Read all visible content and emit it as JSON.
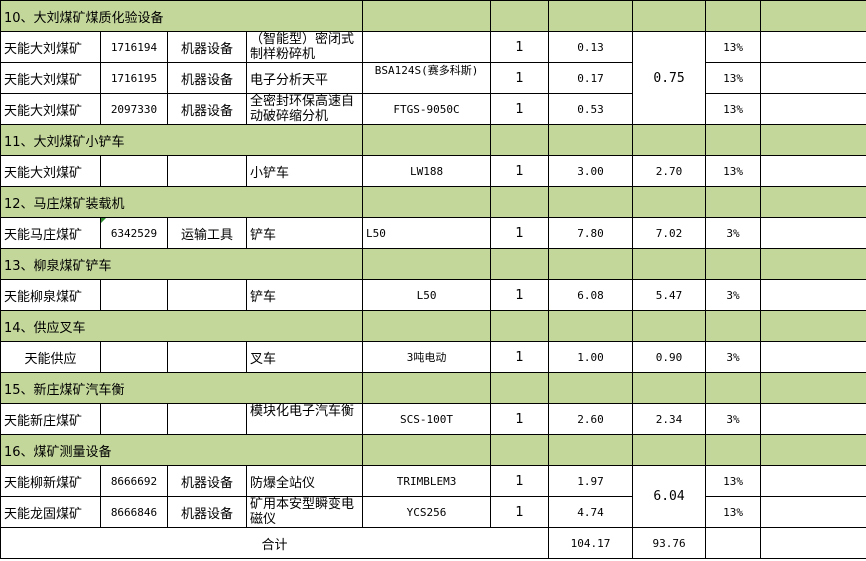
{
  "sections": [
    {
      "title": "10、大刘煤矿煤质化验设备",
      "rows": [
        {
          "company": "天能大刘煤矿",
          "code": "1716194",
          "category": "机器设备",
          "name": "（智能型）密闭式制样粉碎机",
          "model": "",
          "qty": "1",
          "value": "0.13",
          "tax": "13%"
        },
        {
          "company": "天能大刘煤矿",
          "code": "1716195",
          "category": "机器设备",
          "name": "电子分析天平",
          "model": "BSA124S(赛多科斯)",
          "qty": "1",
          "value": "0.17",
          "tax": "13%"
        },
        {
          "company": "天能大刘煤矿",
          "code": "2097330",
          "category": "机器设备",
          "name": "全密封环保高速自动破碎缩分机",
          "model": "FTGS-9050C",
          "qty": "1",
          "value": "0.53",
          "tax": "13%"
        }
      ],
      "merged_net": "0.75"
    },
    {
      "title": "11、大刘煤矿小铲车",
      "rows": [
        {
          "company": "天能大刘煤矿",
          "code": "",
          "category": "",
          "name": "小铲车",
          "model": "LW188",
          "qty": "1",
          "value": "3.00",
          "net": "2.70",
          "tax": "13%"
        }
      ]
    },
    {
      "title": "12、马庄煤矿装载机",
      "rows": [
        {
          "company": "天能马庄煤矿",
          "code": "6342529",
          "category": "运输工具",
          "name": "铲车",
          "model": "L50",
          "model_align": "left",
          "qty": "1",
          "value": "7.80",
          "net": "7.02",
          "tax": "3%",
          "comment": true
        }
      ]
    },
    {
      "title": "13、柳泉煤矿铲车",
      "rows": [
        {
          "company": "天能柳泉煤矿",
          "code": "",
          "category": "",
          "name": "铲车",
          "model": "L50",
          "qty": "1",
          "value": "6.08",
          "net": "5.47",
          "tax": "3%"
        }
      ]
    },
    {
      "title": "14、供应叉车",
      "rows": [
        {
          "company": "天能供应",
          "code": "",
          "category": "",
          "name": "叉车",
          "model": "3吨电动",
          "qty": "1",
          "value": "1.00",
          "net": "0.90",
          "tax": "3%",
          "center_company": true
        }
      ]
    },
    {
      "title": "15、新庄煤矿汽车衡",
      "rows": [
        {
          "company": "天能新庄煤矿",
          "code": "",
          "category": "",
          "name": "模块化电子汽车衡",
          "model": "SCS-100T",
          "qty": "1",
          "value": "2.60",
          "net": "2.34",
          "tax": "3%"
        }
      ]
    },
    {
      "title": "16、煤矿测量设备",
      "rows": [
        {
          "company": "天能柳新煤矿",
          "code": "8666692",
          "category": "机器设备",
          "name": "防爆全站仪",
          "model": "TRIMBLEM3",
          "qty": "1",
          "value": "1.97",
          "tax": "13%"
        },
        {
          "company": "天能龙固煤矿",
          "code": "8666846",
          "category": "机器设备",
          "name": "矿用本安型瞬变电磁仪",
          "model": "YCS256",
          "qty": "1",
          "value": "4.74",
          "tax": "13%"
        }
      ],
      "merged_net": "6.04"
    }
  ],
  "total": {
    "label": "合计",
    "value": "104.17",
    "net": "93.76"
  },
  "colors": {
    "section_bg": "#c4d79b",
    "border": "#000000"
  }
}
